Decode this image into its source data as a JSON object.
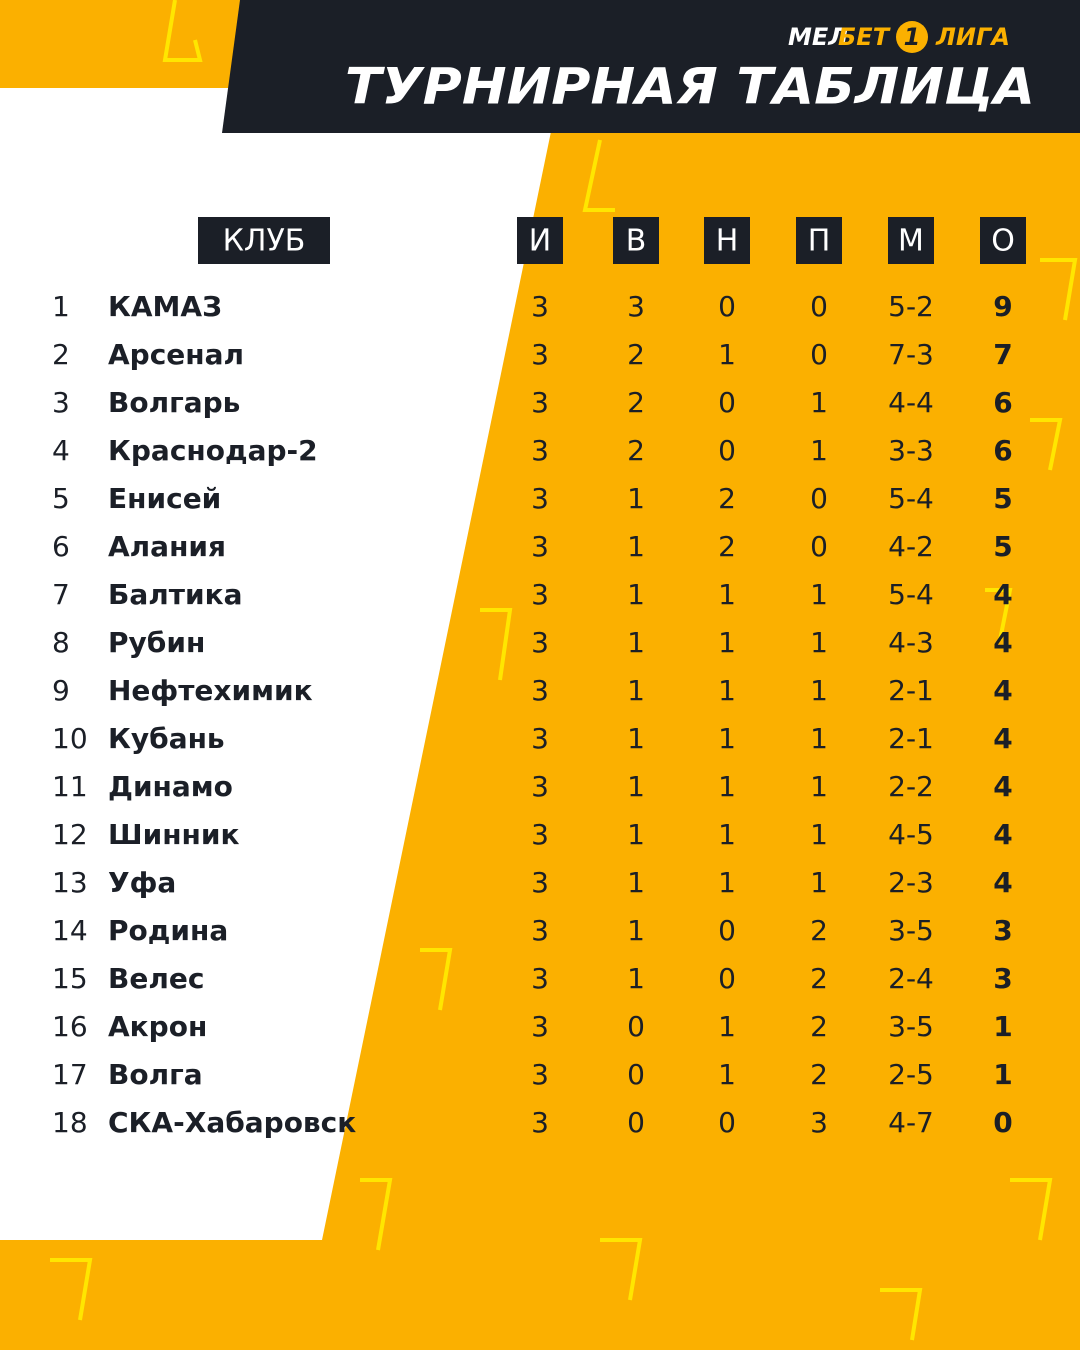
{
  "header": {
    "logo": {
      "mel": "МЕЛ",
      "bet": "БЕТ",
      "number": "1",
      "liga": "ЛИГА"
    },
    "title": "ТУРНИРНАЯ ТАБЛИЦА"
  },
  "table": {
    "columns": [
      "КЛУБ",
      "И",
      "В",
      "Н",
      "П",
      "М",
      "О"
    ],
    "rows": [
      [
        1,
        "КАМАЗ",
        3,
        3,
        0,
        0,
        "5-2",
        9
      ],
      [
        2,
        "Арсенал",
        3,
        2,
        1,
        0,
        "7-3",
        7
      ],
      [
        3,
        "Волгарь",
        3,
        2,
        0,
        1,
        "4-4",
        6
      ],
      [
        4,
        "Краснодар-2",
        3,
        2,
        0,
        1,
        "3-3",
        6
      ],
      [
        5,
        "Енисей",
        3,
        1,
        2,
        0,
        "5-4",
        5
      ],
      [
        6,
        "Алания",
        3,
        1,
        2,
        0,
        "4-2",
        5
      ],
      [
        7,
        "Балтика",
        3,
        1,
        1,
        1,
        "5-4",
        4
      ],
      [
        8,
        "Рубин",
        3,
        1,
        1,
        1,
        "4-3",
        4
      ],
      [
        9,
        "Нефтехимик",
        3,
        1,
        1,
        1,
        "2-1",
        4
      ],
      [
        10,
        "Кубань",
        3,
        1,
        1,
        1,
        "2-1",
        4
      ],
      [
        11,
        "Динамо",
        3,
        1,
        1,
        1,
        "2-2",
        4
      ],
      [
        12,
        "Шинник",
        3,
        1,
        1,
        1,
        "4-5",
        4
      ],
      [
        13,
        "Уфа",
        3,
        1,
        1,
        1,
        "2-3",
        4
      ],
      [
        14,
        "Родина",
        3,
        1,
        0,
        2,
        "3-5",
        3
      ],
      [
        15,
        "Велес",
        3,
        1,
        0,
        2,
        "2-4",
        3
      ],
      [
        16,
        "Акрон",
        3,
        0,
        1,
        2,
        "3-5",
        1
      ],
      [
        17,
        "Волга",
        3,
        0,
        1,
        2,
        "2-5",
        1
      ],
      [
        18,
        "СКА-Хабаровск",
        3,
        0,
        0,
        3,
        "4-7",
        0
      ]
    ]
  }
}
